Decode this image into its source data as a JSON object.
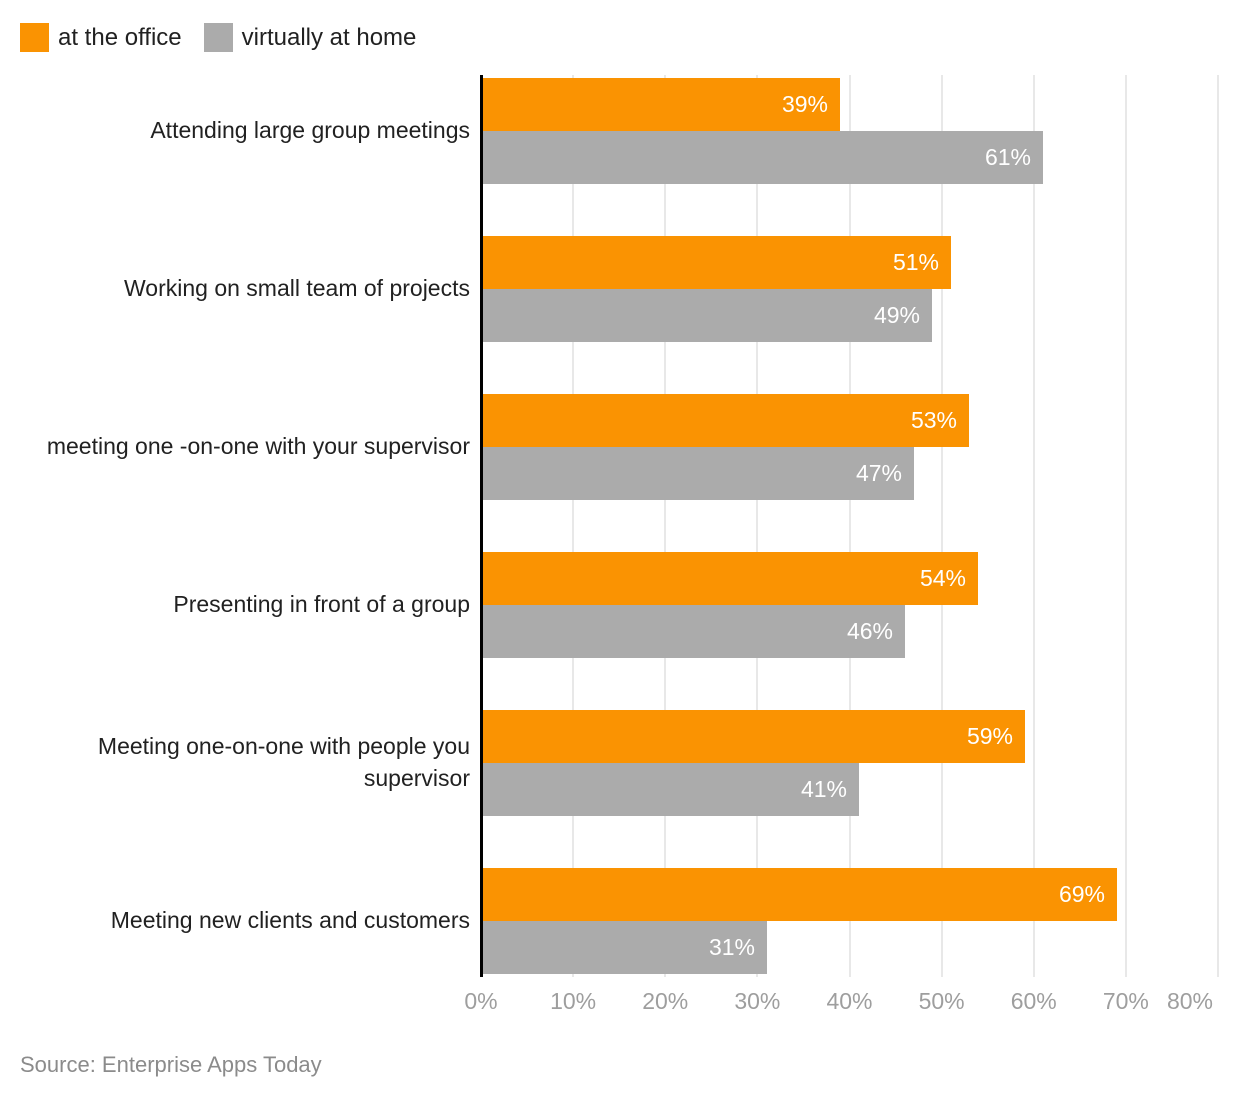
{
  "legend": {
    "items": [
      {
        "label": "at the office",
        "color": "#fa9302"
      },
      {
        "label": "virtually at home",
        "color": "#ababab"
      }
    ]
  },
  "source": "Source: Enterprise Apps Today",
  "colors": {
    "office_bar": "#fa9302",
    "home_bar": "#ababab",
    "axis_line": "#000000",
    "gridline": "#e8e8e8",
    "category_text": "#212121",
    "tick_text": "#9e9e9e",
    "value_text": "#ffffff",
    "source_text": "#8b8b8b"
  },
  "chart_data": {
    "type": "bar",
    "orientation": "horizontal",
    "title": "",
    "categories": [
      "Attending large group meetings",
      "Working on small team of projects",
      "meeting one -on-one with your supervisor",
      "Presenting in front of a group",
      "Meeting one-on-one with people you supervisor",
      "Meeting new clients and customers"
    ],
    "series": [
      {
        "name": "at the office",
        "color": "#fa9302",
        "values": [
          39,
          51,
          53,
          54,
          59,
          69
        ]
      },
      {
        "name": "virtually at home",
        "color": "#ababab",
        "values": [
          61,
          49,
          47,
          46,
          41,
          31
        ]
      }
    ],
    "x_ticks": [
      "0%",
      "10%",
      "20%",
      "30%",
      "40%",
      "50%",
      "60%",
      "70%",
      "80%"
    ],
    "xlim": [
      0,
      80
    ],
    "grid": true,
    "legend_position": "top-left",
    "value_labels": "inside-end-white-percent",
    "source": "Source: Enterprise Apps Today"
  }
}
